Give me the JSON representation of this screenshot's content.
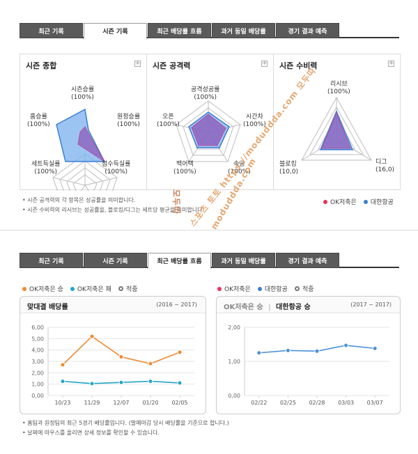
{
  "top_tabs": [
    {
      "label": "최근 기록",
      "active": false
    },
    {
      "label": "시즌 기록",
      "active": true
    },
    {
      "label": "최근 배당률 흐름",
      "active": false
    },
    {
      "label": "과거 동일 배당률",
      "active": false
    },
    {
      "label": "경기 결과 예측",
      "active": false
    }
  ],
  "bottom_tabs": [
    {
      "label": "최근 기록",
      "active": false
    },
    {
      "label": "시즌 기록",
      "active": false
    },
    {
      "label": "최근 배당률 흐름",
      "active": true
    },
    {
      "label": "과거 동일 배당률",
      "active": false
    },
    {
      "label": "경기 결과 예측",
      "active": false
    }
  ],
  "panels": {
    "overall": {
      "title": "시즌 종합",
      "labels": {
        "top": [
          "시즌승률",
          "(100%)"
        ],
        "right": [
          "원정승률",
          "(100%)"
        ],
        "bottom_right": [
          "점수득실률",
          "(100%)"
        ],
        "bottom_left": [
          "세트득실률",
          "(100%)"
        ],
        "left": [
          "홈승률",
          "(100%)"
        ]
      }
    },
    "attack": {
      "title": "시즌 공격력",
      "labels": {
        "top": [
          "공격성공률",
          "(100%)"
        ],
        "right": [
          "시간차",
          "(100%)"
        ],
        "bottom_right": [
          "속공",
          "(100%)"
        ],
        "bottom_left": [
          "백어택",
          "(100%)"
        ],
        "left": [
          "오픈",
          "(100%)"
        ]
      }
    },
    "defense": {
      "title": "시즌 수비력",
      "labels": {
        "top": [
          "리시브",
          "(100%)"
        ],
        "bottom_left": [
          "블로킹",
          "(10,0)"
        ],
        "bottom_right": [
          "디그",
          "(16,0)"
        ]
      }
    }
  },
  "notes_top": [
    "시즌 공격력의 각 항목은 성공률을 의미합니다.",
    "시즌 수비력의 리시브는 성공률을, 블로킹/디그는 세트당 평균을 의미합니다."
  ],
  "team_legend": {
    "team_a": "OK저축은",
    "team_b": "대한항공",
    "team_a_color": "#e8325a",
    "team_b_color": "#3a7fd5"
  },
  "legend_left": {
    "win": "OK저축은 승",
    "lose": "OK저축은 패",
    "hit": "적중"
  },
  "legend_right": {
    "team_a": "OK저축은",
    "team_b": "대한항공",
    "hit": "적중"
  },
  "chart_left_header": {
    "title": "맞대결 배당률",
    "range": "(2016 ~ 2017)"
  },
  "chart_right_header": {
    "team_a": "OK저축은 승",
    "separator": "|",
    "team_b": "대한항공 승",
    "range": "(2017 ~ 2017)"
  },
  "chart_data": [
    {
      "type": "line",
      "title": "맞대결 배당률",
      "categories": [
        "10/23",
        "11/29",
        "12/07",
        "01/20",
        "02/05"
      ],
      "y_ticks": [
        "6,00",
        "5,00",
        "4,00",
        "3,00",
        "2,00",
        "1,00",
        "0,00"
      ],
      "ylim": [
        0,
        6
      ],
      "series": [
        {
          "name": "OK저축은 승",
          "color": "#f0892e",
          "values": [
            2.7,
            5.2,
            3.4,
            2.8,
            3.8
          ]
        },
        {
          "name": "OK저축은 패",
          "color": "#22a6c8",
          "values": [
            1.25,
            1.05,
            1.15,
            1.25,
            1.1
          ]
        }
      ]
    },
    {
      "type": "line",
      "categories": [
        "02/22",
        "02/25",
        "02/28",
        "03/03",
        "03/07"
      ],
      "y_ticks": [
        "2,00",
        "1,00",
        "0,00"
      ],
      "ylim": [
        0,
        2
      ],
      "series": [
        {
          "name": "대한항공",
          "color": "#4a90d9",
          "values": [
            1.25,
            1.32,
            1.3,
            1.47,
            1.38
          ]
        }
      ]
    }
  ],
  "notes_bottom": [
    "홈팀과 원정팀의 최근 5경기 배당률입니다. (발매마감 당시 배당률을 기준으로 합니다.)",
    "날짜에 마우스를 올리면 상세 정보를 확인할 수 있습니다."
  ],
  "watermarks": [
    "모두따",
    "moduddda.com",
    "스포츠 토토 https://moduddda.com 모두따"
  ]
}
